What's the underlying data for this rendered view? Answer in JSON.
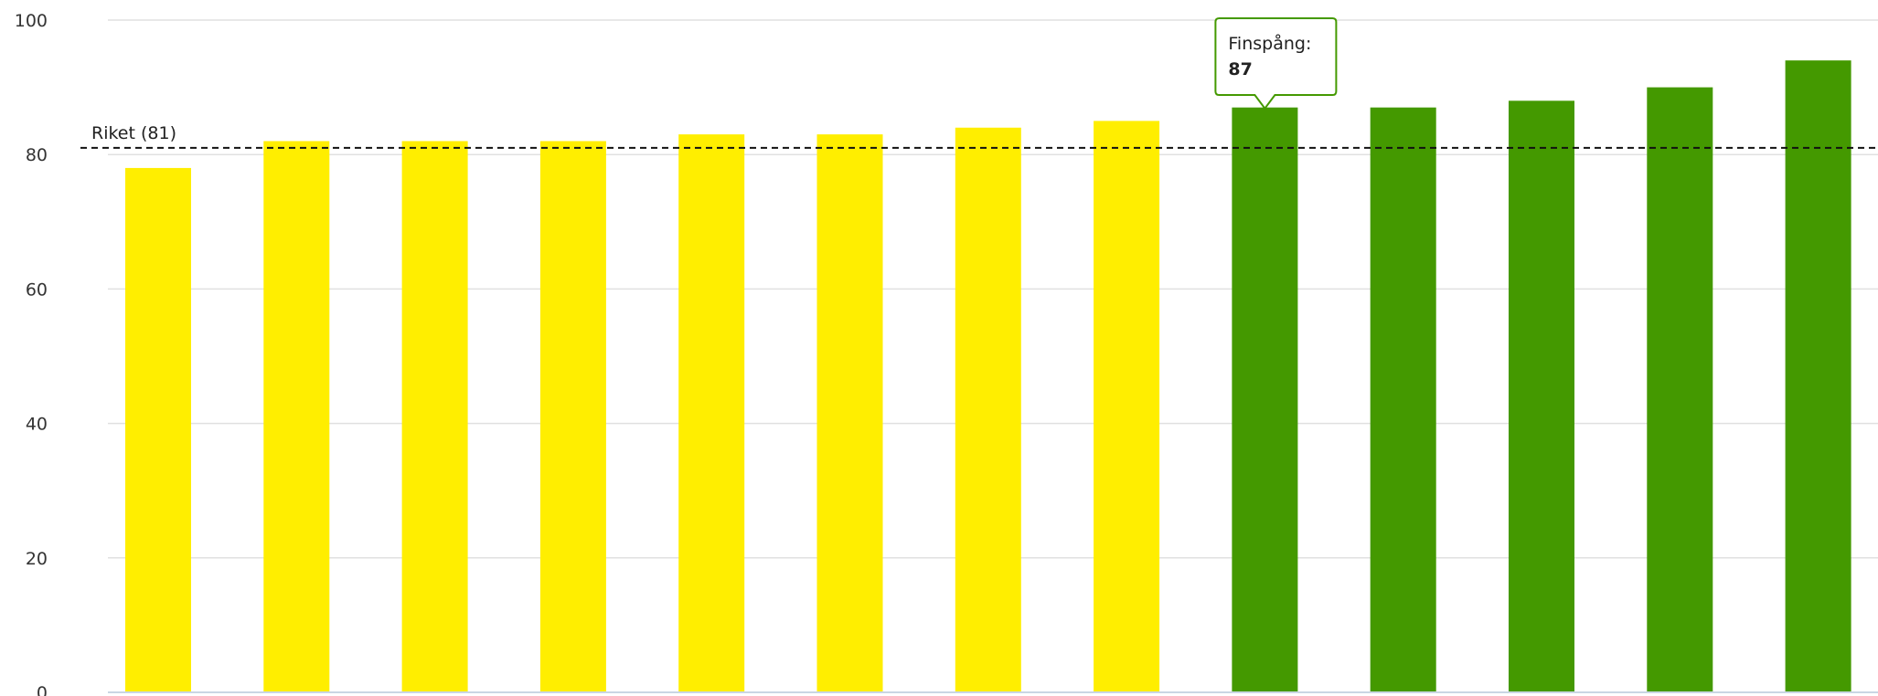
{
  "chart_data": {
    "type": "bar",
    "ylim": [
      0,
      100
    ],
    "yticks": [
      0,
      20,
      40,
      60,
      80,
      100
    ],
    "values": [
      78,
      82,
      82,
      82,
      83,
      83,
      84,
      85,
      87,
      87,
      88,
      90,
      94
    ],
    "bar_colors": [
      "#ffee00",
      "#ffee00",
      "#ffee00",
      "#ffee00",
      "#ffee00",
      "#ffee00",
      "#ffee00",
      "#ffee00",
      "#449900",
      "#449900",
      "#449900",
      "#449900",
      "#449900"
    ],
    "grid": true,
    "reference_line": {
      "label": "Riket (81)",
      "value": 81,
      "style": "dashed"
    },
    "tooltip": {
      "bar_index": 8,
      "label": "Finspång:",
      "value": "87"
    }
  },
  "colors": {
    "grid": "#e0e0e0",
    "axis": "#c9d6e3",
    "reference_line": "#111111",
    "tooltip_border": "#449900"
  }
}
